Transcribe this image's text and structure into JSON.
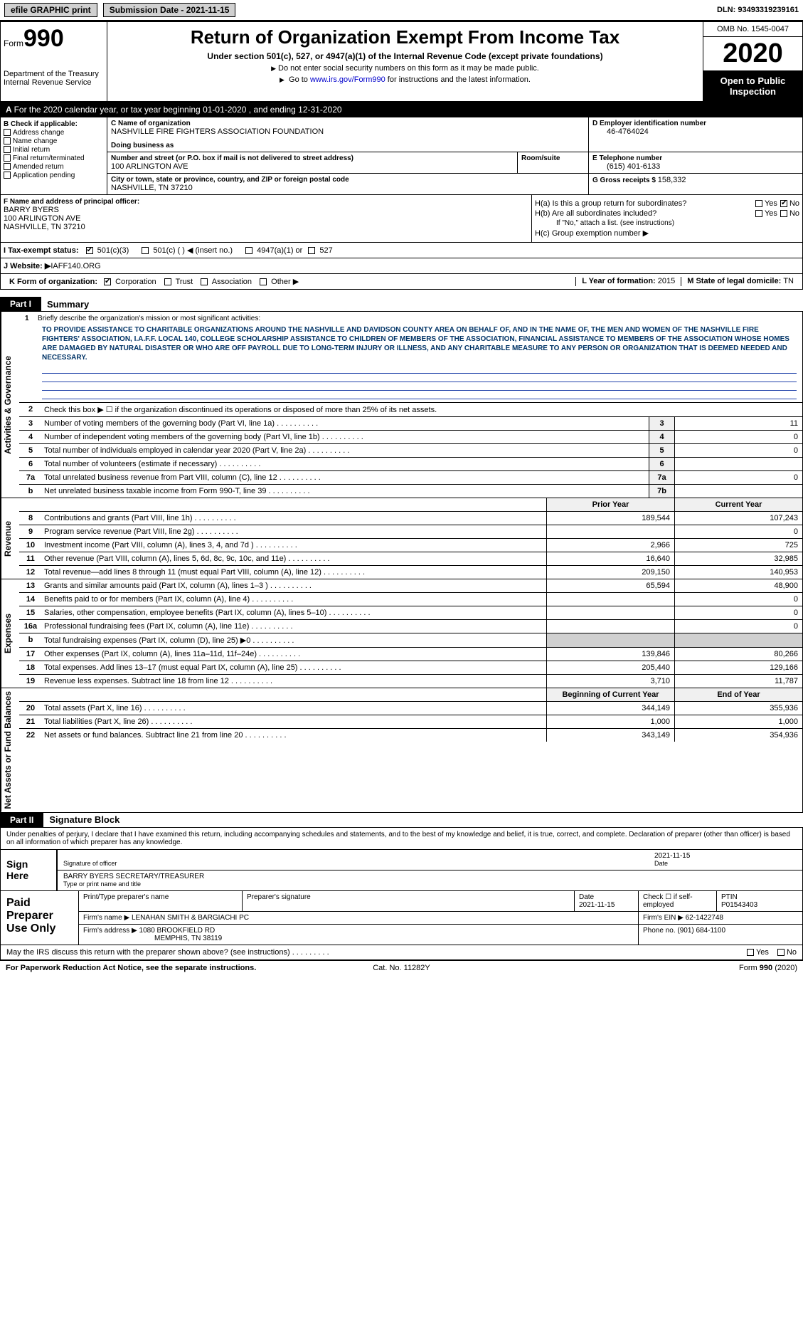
{
  "topbar": {
    "efile_btn": "efile GRAPHIC print",
    "submission_label": "Submission Date - ",
    "submission_date": "2021-11-15",
    "dln_label": "DLN: ",
    "dln": "93493319239161"
  },
  "header": {
    "form_word": "Form",
    "form_num": "990",
    "dept": "Department of the Treasury\nInternal Revenue Service",
    "title": "Return of Organization Exempt From Income Tax",
    "subtitle": "Under section 501(c), 527, or 4947(a)(1) of the Internal Revenue Code (except private foundations)",
    "note1": "Do not enter social security numbers on this form as it may be made public.",
    "note2_pre": "Go to ",
    "note2_link": "www.irs.gov/Form990",
    "note2_post": " for instructions and the latest information.",
    "omb": "OMB No. 1545-0047",
    "year": "2020",
    "open": "Open to Public Inspection"
  },
  "line_a": "For the 2020 calendar year, or tax year beginning 01-01-2020   , and ending 12-31-2020",
  "box_b": {
    "label": "B Check if applicable:",
    "opts": [
      "Address change",
      "Name change",
      "Initial return",
      "Final return/terminated",
      "Amended return",
      "Application pending"
    ]
  },
  "box_c": {
    "name_lbl": "C Name of organization",
    "name": "NASHVILLE FIRE FIGHTERS ASSOCIATION FOUNDATION",
    "dba_lbl": "Doing business as",
    "street_lbl": "Number and street (or P.O. box if mail is not delivered to street address)",
    "street": "100 ARLINGTON AVE",
    "room_lbl": "Room/suite",
    "city_lbl": "City or town, state or province, country, and ZIP or foreign postal code",
    "city": "NASHVILLE, TN  37210"
  },
  "box_d": {
    "lbl": "D Employer identification number",
    "val": "46-4764024"
  },
  "box_e": {
    "lbl": "E Telephone number",
    "val": "(615) 401-6133"
  },
  "box_g": {
    "lbl": "G Gross receipts $ ",
    "val": "158,332"
  },
  "box_f": {
    "lbl": "F  Name and address of principal officer:",
    "name": "BARRY BYERS",
    "addr1": "100 ARLINGTON AVE",
    "addr2": "NASHVILLE, TN  37210"
  },
  "box_h": {
    "ha": "H(a)  Is this a group return for subordinates?",
    "hb": "H(b)  Are all subordinates included?",
    "hb_note": "If \"No,\" attach a list. (see instructions)",
    "hc": "H(c)  Group exemption number ▶",
    "yes": "Yes",
    "no": "No"
  },
  "box_i": {
    "lbl": "I   Tax-exempt status:",
    "o1": "501(c)(3)",
    "o2": "501(c) (  ) ◀ (insert no.)",
    "o3": "4947(a)(1) or",
    "o4": "527"
  },
  "box_j": {
    "lbl": "J   Website: ▶ ",
    "val": "IAFF140.ORG"
  },
  "box_k": {
    "lbl": "K Form of organization:",
    "o1": "Corporation",
    "o2": "Trust",
    "o3": "Association",
    "o4": "Other ▶",
    "l_lbl": "L Year of formation: ",
    "l_val": "2015",
    "m_lbl": "M State of legal domicile: ",
    "m_val": "TN"
  },
  "part1": {
    "tab": "Part I",
    "title": "Summary",
    "vlabels": [
      "Activities & Governance",
      "Revenue",
      "Expenses",
      "Net Assets or Fund Balances"
    ],
    "l1_lbl": "Briefly describe the organization's mission or most significant activities:",
    "l1_text": "TO PROVIDE ASSISTANCE TO CHARITABLE ORGANIZATIONS AROUND THE NASHVILLE AND DAVIDSON COUNTY AREA ON BEHALF OF, AND IN THE NAME OF, THE MEN AND WOMEN OF THE NASHVILLE FIRE FIGHTERS' ASSOCIATION, I.A.F.F. LOCAL 140, COLLEGE SCHOLARSHIP ASSISTANCE TO CHILDREN OF MEMBERS OF THE ASSOCIATION, FINANCIAL ASSISTANCE TO MEMBERS OF THE ASSOCIATION WHOSE HOMES ARE DAMAGED BY NATURAL DISASTER OR WHO ARE OFF PAYROLL DUE TO LONG-TERM INJURY OR ILLNESS, AND ANY CHARITABLE MEASURE TO ANY PERSON OR ORGANIZATION THAT IS DEEMED NEEDED AND NECESSARY.",
    "l2": "Check this box ▶ ☐  if the organization discontinued its operations or disposed of more than 25% of its net assets.",
    "rows_gov": [
      {
        "n": "3",
        "d": "Number of voting members of the governing body (Part VI, line 1a)",
        "box": "3",
        "v": "11"
      },
      {
        "n": "4",
        "d": "Number of independent voting members of the governing body (Part VI, line 1b)",
        "box": "4",
        "v": "0"
      },
      {
        "n": "5",
        "d": "Total number of individuals employed in calendar year 2020 (Part V, line 2a)",
        "box": "5",
        "v": "0"
      },
      {
        "n": "6",
        "d": "Total number of volunteers (estimate if necessary)",
        "box": "6",
        "v": ""
      },
      {
        "n": "7a",
        "d": "Total unrelated business revenue from Part VIII, column (C), line 12",
        "box": "7a",
        "v": "0"
      },
      {
        "n": "b",
        "d": "Net unrelated business taxable income from Form 990-T, line 39",
        "box": "7b",
        "v": ""
      }
    ],
    "hdr_prior": "Prior Year",
    "hdr_curr": "Current Year",
    "rows_rev": [
      {
        "n": "8",
        "d": "Contributions and grants (Part VIII, line 1h)",
        "p": "189,544",
        "c": "107,243"
      },
      {
        "n": "9",
        "d": "Program service revenue (Part VIII, line 2g)",
        "p": "",
        "c": "0"
      },
      {
        "n": "10",
        "d": "Investment income (Part VIII, column (A), lines 3, 4, and 7d )",
        "p": "2,966",
        "c": "725"
      },
      {
        "n": "11",
        "d": "Other revenue (Part VIII, column (A), lines 5, 6d, 8c, 9c, 10c, and 11e)",
        "p": "16,640",
        "c": "32,985"
      },
      {
        "n": "12",
        "d": "Total revenue—add lines 8 through 11 (must equal Part VIII, column (A), line 12)",
        "p": "209,150",
        "c": "140,953"
      }
    ],
    "rows_exp": [
      {
        "n": "13",
        "d": "Grants and similar amounts paid (Part IX, column (A), lines 1–3 )",
        "p": "65,594",
        "c": "48,900"
      },
      {
        "n": "14",
        "d": "Benefits paid to or for members (Part IX, column (A), line 4)",
        "p": "",
        "c": "0"
      },
      {
        "n": "15",
        "d": "Salaries, other compensation, employee benefits (Part IX, column (A), lines 5–10)",
        "p": "",
        "c": "0"
      },
      {
        "n": "16a",
        "d": "Professional fundraising fees (Part IX, column (A), line 11e)",
        "p": "",
        "c": "0"
      },
      {
        "n": "b",
        "d": "Total fundraising expenses (Part IX, column (D), line 25) ▶0",
        "p": "GREY",
        "c": "GREY"
      },
      {
        "n": "17",
        "d": "Other expenses (Part IX, column (A), lines 11a–11d, 11f–24e)",
        "p": "139,846",
        "c": "80,266"
      },
      {
        "n": "18",
        "d": "Total expenses. Add lines 13–17 (must equal Part IX, column (A), line 25)",
        "p": "205,440",
        "c": "129,166"
      },
      {
        "n": "19",
        "d": "Revenue less expenses. Subtract line 18 from line 12",
        "p": "3,710",
        "c": "11,787"
      }
    ],
    "hdr_beg": "Beginning of Current Year",
    "hdr_end": "End of Year",
    "rows_net": [
      {
        "n": "20",
        "d": "Total assets (Part X, line 16)",
        "p": "344,149",
        "c": "355,936"
      },
      {
        "n": "21",
        "d": "Total liabilities (Part X, line 26)",
        "p": "1,000",
        "c": "1,000"
      },
      {
        "n": "22",
        "d": "Net assets or fund balances. Subtract line 21 from line 20",
        "p": "343,149",
        "c": "354,936"
      }
    ]
  },
  "part2": {
    "tab": "Part II",
    "title": "Signature Block",
    "perjury": "Under penalties of perjury, I declare that I have examined this return, including accompanying schedules and statements, and to the best of my knowledge and belief, it is true, correct, and complete. Declaration of preparer (other than officer) is based on all information of which preparer has any knowledge.",
    "sign_here": "Sign Here",
    "sig_officer_lbl": "Signature of officer",
    "sig_date": "2021-11-15",
    "date_lbl": "Date",
    "officer_name": "BARRY BYERS  SECRETARY/TREASURER",
    "officer_name_lbl": "Type or print name and title",
    "paid_prep": "Paid Preparer Use Only",
    "p_name_lbl": "Print/Type preparer's name",
    "p_sig_lbl": "Preparer's signature",
    "p_date_lbl": "Date",
    "p_date": "2021-11-15",
    "p_check_lbl": "Check ☐ if self-employed",
    "ptin_lbl": "PTIN",
    "ptin": "P01543403",
    "firm_name_lbl": "Firm's name   ▶ ",
    "firm_name": "LENAHAN SMITH & BARGIACHI PC",
    "firm_ein_lbl": "Firm's EIN ▶ ",
    "firm_ein": "62-1422748",
    "firm_addr_lbl": "Firm's address ▶ ",
    "firm_addr": "1080 BROOKFIELD RD",
    "firm_city": "MEMPHIS, TN  38119",
    "phone_lbl": "Phone no. ",
    "phone": "(901) 684-1100"
  },
  "discuss": {
    "q": "May the IRS discuss this return with the preparer shown above? (see instructions)",
    "yes": "Yes",
    "no": "No"
  },
  "footer": {
    "l": "For Paperwork Reduction Act Notice, see the separate instructions.",
    "c": "Cat. No. 11282Y",
    "r": "Form 990 (2020)"
  }
}
